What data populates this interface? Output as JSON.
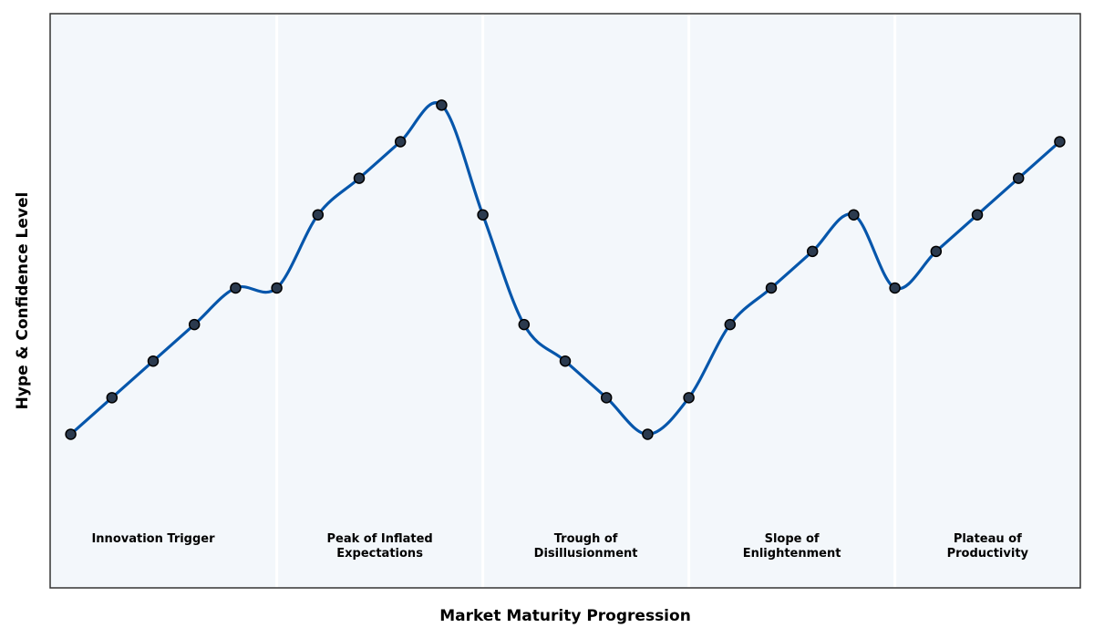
{
  "chart_data": {
    "type": "line",
    "title": "",
    "xlabel": "Market Maturity Progression",
    "ylabel": "Hype & Confidence Level",
    "x": [
      0,
      1,
      2,
      3,
      4,
      5,
      6,
      7,
      8,
      9,
      10,
      11,
      12,
      13,
      14,
      15,
      16,
      17,
      18,
      19,
      20,
      21,
      22,
      23,
      24
    ],
    "series": [
      {
        "values": [
          20,
          30,
          40,
          50,
          60,
          60,
          80,
          90,
          100,
          110,
          80,
          50,
          40,
          30,
          20,
          30,
          50,
          60,
          70,
          80,
          60,
          70,
          80,
          90,
          100
        ]
      }
    ],
    "xlim": [
      -0.5,
      24.5
    ],
    "ylim": [
      -22,
      135
    ],
    "phases": [
      {
        "label_lines": [
          "Innovation Trigger"
        ],
        "start": -0.5,
        "end": 5
      },
      {
        "label_lines": [
          "Peak of Inflated",
          "Expectations"
        ],
        "start": 5,
        "end": 10
      },
      {
        "label_lines": [
          "Trough of",
          "Disillusionment"
        ],
        "start": 10,
        "end": 15
      },
      {
        "label_lines": [
          "Slope of",
          "Enlightenment"
        ],
        "start": 15,
        "end": 20
      },
      {
        "label_lines": [
          "Plateau of",
          "Productivity"
        ],
        "start": 20,
        "end": 24.5
      }
    ],
    "grid": false,
    "legend": "none"
  },
  "colors": {
    "line": "#0656ab",
    "marker_fill": "#2b3a4e",
    "marker_edge": "#000000",
    "phase_bg": "#f3f7fb",
    "divider": "#ffffff",
    "frame": "#333333"
  }
}
